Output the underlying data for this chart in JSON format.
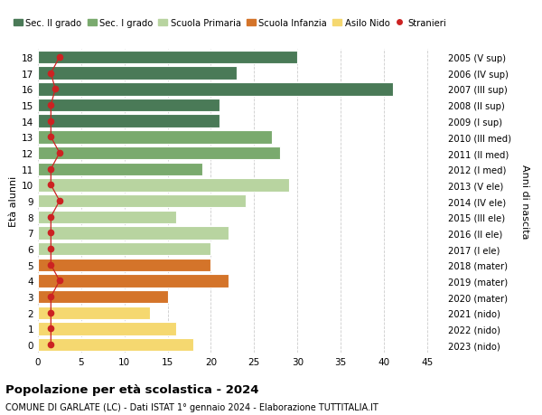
{
  "ages": [
    18,
    17,
    16,
    15,
    14,
    13,
    12,
    11,
    10,
    9,
    8,
    7,
    6,
    5,
    4,
    3,
    2,
    1,
    0
  ],
  "values": [
    30,
    23,
    41,
    21,
    21,
    27,
    28,
    19,
    29,
    24,
    16,
    22,
    20,
    20,
    22,
    15,
    13,
    16,
    18
  ],
  "right_labels": [
    "2005 (V sup)",
    "2006 (IV sup)",
    "2007 (III sup)",
    "2008 (II sup)",
    "2009 (I sup)",
    "2010 (III med)",
    "2011 (II med)",
    "2012 (I med)",
    "2013 (V ele)",
    "2014 (IV ele)",
    "2015 (III ele)",
    "2016 (II ele)",
    "2017 (I ele)",
    "2018 (mater)",
    "2019 (mater)",
    "2020 (mater)",
    "2021 (nido)",
    "2022 (nido)",
    "2023 (nido)"
  ],
  "bar_colors": [
    "#4a7a57",
    "#4a7a57",
    "#4a7a57",
    "#4a7a57",
    "#4a7a57",
    "#7aaa6e",
    "#7aaa6e",
    "#7aaa6e",
    "#b8d4a0",
    "#b8d4a0",
    "#b8d4a0",
    "#b8d4a0",
    "#b8d4a0",
    "#d4742a",
    "#d4742a",
    "#d4742a",
    "#f5d870",
    "#f5d870",
    "#f5d870"
  ],
  "stranieri_color": "#cc2222",
  "stranieri_x": [
    2.5,
    1.5,
    2.0,
    1.5,
    1.5,
    1.5,
    2.5,
    1.5,
    1.5,
    2.5,
    1.5,
    1.5,
    1.5,
    1.5,
    2.5,
    1.5,
    1.5,
    1.5,
    1.5
  ],
  "legend_labels": [
    "Sec. II grado",
    "Sec. I grado",
    "Scuola Primaria",
    "Scuola Infanzia",
    "Asilo Nido",
    "Stranieri"
  ],
  "legend_colors": [
    "#4a7a57",
    "#7aaa6e",
    "#b8d4a0",
    "#d4742a",
    "#f5d870",
    "#cc2222"
  ],
  "ylabel_left": "Età alunni",
  "ylabel_right": "Anni di nascita",
  "title1": "Popolazione per età scolastica - 2024",
  "title2": "COMUNE DI GARLATE (LC) - Dati ISTAT 1° gennaio 2024 - Elaborazione TUTTITALIA.IT",
  "xlim": [
    0,
    47
  ],
  "ylim": [
    -0.5,
    18.5
  ],
  "xticks": [
    0,
    5,
    10,
    15,
    20,
    25,
    30,
    35,
    40,
    45
  ],
  "background_color": "#ffffff",
  "grid_color": "#cccccc"
}
